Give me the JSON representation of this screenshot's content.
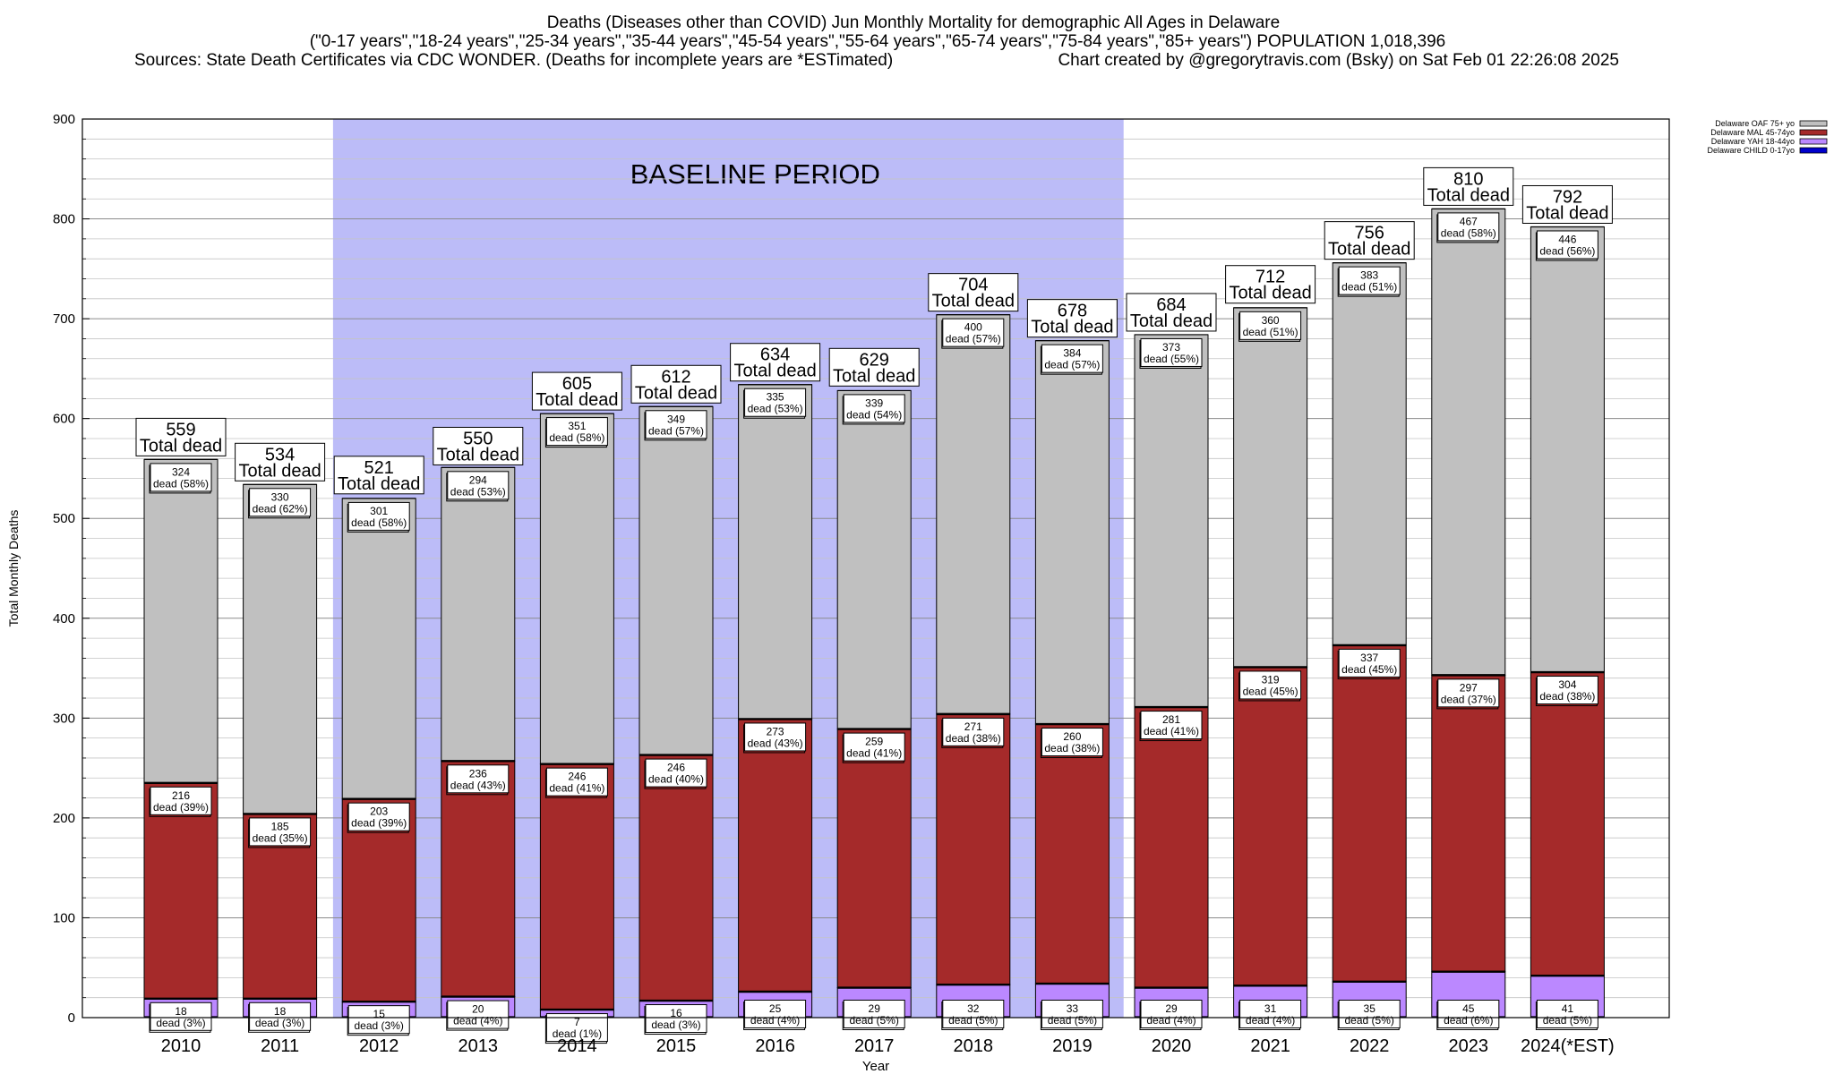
{
  "chart_data": {
    "type": "bar",
    "title": {
      "line1": "Deaths (Diseases other than COVID) Jun Monthly Mortality for demographic All Ages in Delaware",
      "line2": "(\"0-17 years\",\"18-24 years\",\"25-34 years\",\"35-44 years\",\"45-54 years\",\"55-64 years\",\"65-74 years\",\"75-84 years\",\"85+ years\") POPULATION 1,018,396",
      "line3_left": "Sources: State Death Certificates via CDC WONDER. (Deaths for incomplete years are *ESTimated)",
      "line3_right": "Chart created by @gregorytravis.com (Bsky) on Sat Feb 01 22:26:08 2025"
    },
    "xlabel": "Year",
    "ylabel": "Total Monthly Deaths",
    "ylim": [
      0,
      900
    ],
    "y_ticks": [
      0,
      100,
      200,
      300,
      400,
      500,
      600,
      700,
      800,
      900
    ],
    "grid": "horizontal",
    "baseline_label": "BASELINE PERIOD",
    "baseline_range": [
      "2012",
      "2019"
    ],
    "total_label_suffix": "Total dead",
    "segment_label_word": "dead",
    "legend_position": "top-right",
    "categories": [
      "2010",
      "2011",
      "2012",
      "2013",
      "2014",
      "2015",
      "2016",
      "2017",
      "2018",
      "2019",
      "2020",
      "2021",
      "2022",
      "2023",
      "2024(*EST)"
    ],
    "totals": [
      559,
      534,
      521,
      550,
      605,
      612,
      634,
      629,
      704,
      678,
      684,
      712,
      756,
      810,
      792
    ],
    "series": [
      {
        "name": "Delaware CHILD 0-17yo",
        "color": "#0000cc",
        "values": [
          1,
          1,
          1,
          1,
          1,
          1,
          1,
          1,
          1,
          1,
          1,
          1,
          1,
          1,
          1
        ]
      },
      {
        "name": "Delaware YAH 18-44yo",
        "color": "#bb88ff",
        "values": [
          18,
          18,
          15,
          20,
          7,
          16,
          25,
          29,
          32,
          33,
          29,
          31,
          35,
          45,
          41
        ],
        "percents": [
          "3%",
          "3%",
          "3%",
          "4%",
          "1%",
          "3%",
          "4%",
          "5%",
          "5%",
          "5%",
          "4%",
          "4%",
          "5%",
          "6%",
          "5%"
        ]
      },
      {
        "name": "Delaware MAL 45-74yo",
        "color": "#a52a2a",
        "values": [
          216,
          185,
          203,
          236,
          246,
          246,
          273,
          259,
          271,
          260,
          281,
          319,
          337,
          297,
          304
        ],
        "percents": [
          "39%",
          "35%",
          "39%",
          "43%",
          "41%",
          "40%",
          "43%",
          "41%",
          "38%",
          "38%",
          "41%",
          "45%",
          "45%",
          "37%",
          "38%"
        ]
      },
      {
        "name": "Delaware OAF 75+ yo",
        "color": "#c0c0c0",
        "values": [
          324,
          330,
          301,
          294,
          351,
          349,
          335,
          339,
          400,
          384,
          373,
          360,
          383,
          467,
          446
        ],
        "percents": [
          "58%",
          "62%",
          "58%",
          "53%",
          "58%",
          "57%",
          "53%",
          "54%",
          "57%",
          "57%",
          "55%",
          "51%",
          "51%",
          "58%",
          "56%"
        ]
      }
    ]
  }
}
